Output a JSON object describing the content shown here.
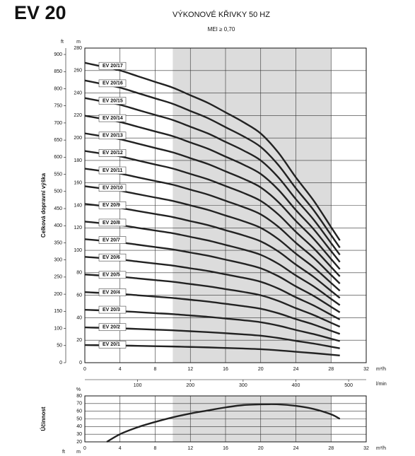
{
  "page_title": "EV 20",
  "chart_data": [
    {
      "type": "line",
      "title": "VÝKONOVÉ KŘIVKY 50 HZ",
      "subtitle": "MEI ≥ 0,70",
      "y_label": "Celková dopravní výška",
      "y_unit": "m",
      "y2_unit": "ft",
      "x_unit": "m³/h",
      "x2_unit": "l/min",
      "x": [
        0,
        2,
        4,
        6,
        8,
        10,
        12,
        14,
        16,
        18,
        20,
        22,
        24,
        26,
        28,
        29
      ],
      "xlim": [
        0,
        32
      ],
      "xticks": [
        0,
        4,
        8,
        12,
        16,
        20,
        24,
        28,
        32
      ],
      "x2lim": [
        0,
        533.33
      ],
      "x2ticks": [
        100,
        200,
        300,
        400,
        500
      ],
      "ylim": [
        0,
        280
      ],
      "yticks": [
        0,
        20,
        40,
        60,
        80,
        100,
        120,
        140,
        160,
        180,
        200,
        220,
        240,
        260,
        280
      ],
      "y2lim": [
        0,
        918.64
      ],
      "y2ticks": [
        0,
        50,
        100,
        150,
        200,
        250,
        300,
        350,
        400,
        450,
        500,
        550,
        600,
        650,
        700,
        750,
        800,
        850,
        900
      ],
      "shade": [
        10,
        28
      ],
      "grid": true,
      "series": [
        {
          "name": "EV 20/1",
          "color": "#222222",
          "values": [
            15.7,
            15.5,
            15.3,
            15,
            14.7,
            14.4,
            14,
            13.6,
            13.1,
            12.6,
            12,
            11,
            9.7,
            8.5,
            7.1,
            6.4
          ]
        },
        {
          "name": "EV 20/2",
          "color": "#222222",
          "values": [
            31.4,
            31,
            30.6,
            30,
            29.4,
            28.8,
            28,
            27.2,
            26.2,
            25.2,
            24,
            22,
            19.4,
            17,
            14.2,
            12.8
          ]
        },
        {
          "name": "EV 20/3",
          "color": "#222222",
          "values": [
            47.1,
            46.5,
            45.9,
            45,
            44.1,
            43.2,
            42,
            40.8,
            39.3,
            37.8,
            36,
            33,
            29.1,
            25.5,
            21.3,
            19.2
          ]
        },
        {
          "name": "EV 20/4",
          "color": "#222222",
          "values": [
            62.8,
            62,
            61.2,
            60,
            58.8,
            57.6,
            56,
            54.4,
            52.4,
            50.4,
            48,
            44,
            38.8,
            34,
            28.4,
            25.6
          ]
        },
        {
          "name": "EV 20/5",
          "color": "#222222",
          "values": [
            78.5,
            77.5,
            76.5,
            75,
            73.5,
            72,
            70,
            68,
            65.5,
            63,
            60,
            55,
            48.5,
            42.5,
            35.5,
            32
          ]
        },
        {
          "name": "EV 20/6",
          "color": "#222222",
          "values": [
            94.2,
            93,
            91.8,
            90,
            88.2,
            86.4,
            84,
            81.6,
            78.6,
            75.6,
            72,
            66,
            58.2,
            51,
            42.6,
            38.4
          ]
        },
        {
          "name": "EV 20/7",
          "color": "#222222",
          "values": [
            109.9,
            108.5,
            107.1,
            105,
            102.9,
            100.8,
            98,
            95.2,
            91.7,
            88.2,
            84,
            77,
            67.9,
            59.5,
            49.7,
            44.8
          ]
        },
        {
          "name": "EV 20/8",
          "color": "#222222",
          "values": [
            125.6,
            124,
            122.4,
            120,
            117.6,
            115.2,
            112,
            108.8,
            104.8,
            100.8,
            96,
            88,
            77.6,
            68,
            56.8,
            51.2
          ]
        },
        {
          "name": "EV 20/9",
          "color": "#222222",
          "values": [
            141.3,
            139.5,
            137.7,
            135,
            132.3,
            129.6,
            126,
            122.4,
            117.9,
            113.4,
            108,
            99,
            87.3,
            76.5,
            63.9,
            57.6
          ]
        },
        {
          "name": "EV 20/10",
          "color": "#222222",
          "values": [
            157,
            155,
            153,
            150,
            147,
            144,
            140,
            136,
            131,
            126,
            120,
            110,
            97,
            85,
            71,
            64
          ]
        },
        {
          "name": "EV 20/11",
          "color": "#222222",
          "values": [
            172.7,
            170.5,
            168.3,
            165,
            161.7,
            158.4,
            154,
            149.6,
            144.1,
            138.6,
            132,
            121,
            106.7,
            93.5,
            78.1,
            70.4
          ]
        },
        {
          "name": "EV 20/12",
          "color": "#222222",
          "values": [
            188.4,
            186,
            183.6,
            180,
            176.4,
            172.8,
            168,
            163.2,
            157.2,
            151.2,
            144,
            132,
            116.4,
            102,
            85.2,
            76.8
          ]
        },
        {
          "name": "EV 20/13",
          "color": "#222222",
          "values": [
            204.1,
            201.5,
            198.9,
            195,
            191.1,
            187.2,
            182,
            176.8,
            170.3,
            163.8,
            156,
            143,
            126.1,
            110.5,
            92.3,
            83.2
          ]
        },
        {
          "name": "EV 20/14",
          "color": "#222222",
          "values": [
            219.8,
            217,
            214.2,
            210,
            205.8,
            201.6,
            196,
            190.4,
            183.4,
            176.4,
            168,
            154,
            135.8,
            119,
            99.4,
            89.6
          ]
        },
        {
          "name": "EV 20/15",
          "color": "#222222",
          "values": [
            235.5,
            232.5,
            229.5,
            225,
            220.5,
            216,
            210,
            204,
            196.5,
            189,
            180,
            165,
            145.5,
            127.5,
            106.5,
            96
          ]
        },
        {
          "name": "EV 20/16",
          "color": "#222222",
          "values": [
            251.2,
            248,
            244.8,
            240,
            235.2,
            230.4,
            224,
            217.6,
            209.6,
            201.6,
            192,
            176,
            155.2,
            136,
            113.6,
            102.4
          ]
        },
        {
          "name": "EV 20/17",
          "color": "#222222",
          "values": [
            266.9,
            263.5,
            260.1,
            255,
            249.9,
            244.8,
            238,
            231.2,
            222.8,
            214.2,
            204,
            187,
            164.9,
            144.5,
            120.7,
            108.8
          ]
        }
      ]
    },
    {
      "type": "line",
      "y_label": "Účinnost",
      "y_unit": "%",
      "x_unit": "m³/h",
      "corner_units": [
        "ft",
        "m"
      ],
      "x": [
        2.5,
        4,
        6,
        8,
        10,
        12,
        14,
        16,
        18,
        20,
        22,
        24,
        26,
        28,
        29
      ],
      "xlim": [
        0,
        32
      ],
      "xticks": [
        0,
        4,
        8,
        12,
        16,
        20,
        24,
        28,
        32
      ],
      "ylim": [
        20,
        80
      ],
      "yticks": [
        20,
        30,
        40,
        50,
        60,
        70,
        80
      ],
      "shade": [
        10,
        28
      ],
      "grid": true,
      "series": [
        {
          "color": "#222222",
          "values": [
            20,
            30,
            39,
            46,
            52,
            57,
            61,
            65,
            68,
            69,
            69,
            67,
            63,
            56,
            50
          ]
        }
      ]
    }
  ]
}
